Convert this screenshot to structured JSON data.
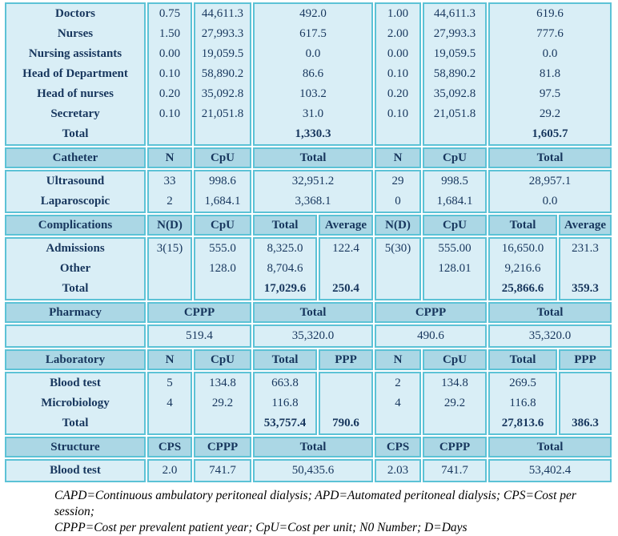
{
  "colors": {
    "border": "#5cc2d6",
    "header_bg": "#abd7e5",
    "body_bg": "#d9eef6",
    "text": "#17365d"
  },
  "table": {
    "grid_columns": [
      176,
      56,
      72,
      80,
      68,
      58,
      80,
      86,
      66
    ],
    "sections": [
      {
        "kind": "body",
        "name": "staff",
        "cells": [
          {
            "col": 1,
            "span": 1,
            "bold_all": true,
            "lines": [
              "Doctors",
              "Nurses",
              "Nursing assistants",
              "Head of Department",
              "Head of nurses",
              "Secretary",
              "Total"
            ]
          },
          {
            "col": 2,
            "span": 1,
            "lines": [
              "0.75",
              "1.50",
              "0.00",
              "0.10",
              "0.20",
              "0.10",
              ""
            ]
          },
          {
            "col": 3,
            "span": 1,
            "lines": [
              "44,611.3",
              "27,993.3",
              "19,059.5",
              "58,890.2",
              "35,092.8",
              "21,051.8",
              ""
            ]
          },
          {
            "col": 4,
            "span": 2,
            "bold_rows": [
              6
            ],
            "lines": [
              "492.0",
              "617.5",
              "0.0",
              "86.6",
              "103.2",
              "31.0",
              "1,330.3"
            ]
          },
          {
            "col": 6,
            "span": 1,
            "lines": [
              "1.00",
              "2.00",
              "0.00",
              "0.10",
              "0.20",
              "0.10",
              ""
            ]
          },
          {
            "col": 7,
            "span": 1,
            "lines": [
              "44,611.3",
              "27,993.3",
              "19,059.5",
              "58,890.2",
              "35,092.8",
              "21,051.8",
              ""
            ]
          },
          {
            "col": 8,
            "span": 2,
            "bold_rows": [
              6
            ],
            "lines": [
              "619.6",
              "777.6",
              "0.0",
              "81.8",
              "97.5",
              "29.2",
              "1,605.7"
            ]
          }
        ]
      },
      {
        "kind": "header",
        "name": "catheter-header",
        "cells": [
          {
            "col": 1,
            "span": 1,
            "lines": [
              "Catheter"
            ]
          },
          {
            "col": 2,
            "span": 1,
            "lines": [
              "N"
            ]
          },
          {
            "col": 3,
            "span": 1,
            "lines": [
              "CpU"
            ]
          },
          {
            "col": 4,
            "span": 2,
            "lines": [
              "Total"
            ]
          },
          {
            "col": 6,
            "span": 1,
            "lines": [
              "N"
            ]
          },
          {
            "col": 7,
            "span": 1,
            "lines": [
              "CpU"
            ]
          },
          {
            "col": 8,
            "span": 2,
            "lines": [
              "Total"
            ]
          }
        ]
      },
      {
        "kind": "body",
        "name": "catheter",
        "cells": [
          {
            "col": 1,
            "span": 1,
            "bold_all": true,
            "lines": [
              "Ultrasound",
              "Laparoscopic"
            ]
          },
          {
            "col": 2,
            "span": 1,
            "lines": [
              "33",
              "2"
            ]
          },
          {
            "col": 3,
            "span": 1,
            "lines": [
              "998.6",
              "1,684.1"
            ]
          },
          {
            "col": 4,
            "span": 2,
            "lines": [
              "32,951.2",
              "3,368.1"
            ]
          },
          {
            "col": 6,
            "span": 1,
            "lines": [
              "29",
              "0"
            ]
          },
          {
            "col": 7,
            "span": 1,
            "lines": [
              "998.5",
              "1,684.1"
            ]
          },
          {
            "col": 8,
            "span": 2,
            "lines": [
              "28,957.1",
              "0.0"
            ]
          }
        ]
      },
      {
        "kind": "header",
        "name": "complications-header",
        "cells": [
          {
            "col": 1,
            "span": 1,
            "lines": [
              "Complications"
            ]
          },
          {
            "col": 2,
            "span": 1,
            "lines": [
              "N(D)"
            ]
          },
          {
            "col": 3,
            "span": 1,
            "lines": [
              "CpU"
            ]
          },
          {
            "col": 4,
            "span": 1,
            "lines": [
              "Total"
            ]
          },
          {
            "col": 5,
            "span": 1,
            "lines": [
              "Average"
            ]
          },
          {
            "col": 6,
            "span": 1,
            "lines": [
              "N(D)"
            ]
          },
          {
            "col": 7,
            "span": 1,
            "lines": [
              "CpU"
            ]
          },
          {
            "col": 8,
            "span": 1,
            "lines": [
              "Total"
            ]
          },
          {
            "col": 9,
            "span": 1,
            "lines": [
              "Average"
            ]
          }
        ]
      },
      {
        "kind": "body",
        "name": "complications",
        "cells": [
          {
            "col": 1,
            "span": 1,
            "bold_all": true,
            "lines": [
              "Admissions",
              "Other",
              "Total"
            ]
          },
          {
            "col": 2,
            "span": 1,
            "lines": [
              "3(15)",
              "",
              ""
            ]
          },
          {
            "col": 3,
            "span": 1,
            "lines": [
              "555.0",
              "128.0",
              ""
            ]
          },
          {
            "col": 4,
            "span": 1,
            "bold_rows": [
              2
            ],
            "lines": [
              "8,325.0",
              "8,704.6",
              "17,029.6"
            ]
          },
          {
            "col": 5,
            "span": 1,
            "bold_rows": [
              2
            ],
            "lines": [
              "122.4",
              "",
              "250.4"
            ]
          },
          {
            "col": 6,
            "span": 1,
            "lines": [
              "5(30)",
              "",
              ""
            ]
          },
          {
            "col": 7,
            "span": 1,
            "lines": [
              "555.00",
              "128.01",
              ""
            ]
          },
          {
            "col": 8,
            "span": 1,
            "bold_rows": [
              2
            ],
            "lines": [
              "16,650.0",
              "9,216.6",
              "25,866.6"
            ]
          },
          {
            "col": 9,
            "span": 1,
            "bold_rows": [
              2
            ],
            "lines": [
              "231.3",
              "",
              "359.3"
            ]
          }
        ]
      },
      {
        "kind": "header",
        "name": "pharmacy-header",
        "cells": [
          {
            "col": 1,
            "span": 1,
            "lines": [
              "Pharmacy"
            ]
          },
          {
            "col": 2,
            "span": 2,
            "lines": [
              "CPPP"
            ]
          },
          {
            "col": 4,
            "span": 2,
            "lines": [
              "Total"
            ]
          },
          {
            "col": 6,
            "span": 2,
            "lines": [
              "CPPP"
            ]
          },
          {
            "col": 8,
            "span": 2,
            "lines": [
              "Total"
            ]
          }
        ]
      },
      {
        "kind": "body",
        "name": "pharmacy",
        "cells": [
          {
            "col": 1,
            "span": 1,
            "lines": [
              ""
            ]
          },
          {
            "col": 2,
            "span": 2,
            "lines": [
              "519.4"
            ]
          },
          {
            "col": 4,
            "span": 2,
            "lines": [
              "35,320.0"
            ]
          },
          {
            "col": 6,
            "span": 2,
            "lines": [
              "490.6"
            ]
          },
          {
            "col": 8,
            "span": 2,
            "lines": [
              "35,320.0"
            ]
          }
        ]
      },
      {
        "kind": "header",
        "name": "laboratory-header",
        "cells": [
          {
            "col": 1,
            "span": 1,
            "lines": [
              "Laboratory"
            ]
          },
          {
            "col": 2,
            "span": 1,
            "lines": [
              "N"
            ]
          },
          {
            "col": 3,
            "span": 1,
            "lines": [
              "CpU"
            ]
          },
          {
            "col": 4,
            "span": 1,
            "lines": [
              "Total"
            ]
          },
          {
            "col": 5,
            "span": 1,
            "lines": [
              "PPP"
            ]
          },
          {
            "col": 6,
            "span": 1,
            "lines": [
              "N"
            ]
          },
          {
            "col": 7,
            "span": 1,
            "lines": [
              "CpU"
            ]
          },
          {
            "col": 8,
            "span": 1,
            "lines": [
              "Total"
            ]
          },
          {
            "col": 9,
            "span": 1,
            "lines": [
              "PPP"
            ]
          }
        ]
      },
      {
        "kind": "body",
        "name": "laboratory",
        "cells": [
          {
            "col": 1,
            "span": 1,
            "bold_all": true,
            "lines": [
              "Blood test",
              "Microbiology",
              "Total"
            ]
          },
          {
            "col": 2,
            "span": 1,
            "lines": [
              "5",
              "4",
              ""
            ]
          },
          {
            "col": 3,
            "span": 1,
            "lines": [
              "134.8",
              "29.2",
              ""
            ]
          },
          {
            "col": 4,
            "span": 1,
            "bold_rows": [
              2
            ],
            "lines": [
              "663.8",
              "116.8",
              "53,757.4"
            ]
          },
          {
            "col": 5,
            "span": 1,
            "bold_rows": [
              2
            ],
            "lines": [
              "",
              "",
              "790.6"
            ]
          },
          {
            "col": 6,
            "span": 1,
            "lines": [
              "2",
              "4",
              ""
            ]
          },
          {
            "col": 7,
            "span": 1,
            "lines": [
              "134.8",
              "29.2",
              ""
            ]
          },
          {
            "col": 8,
            "span": 1,
            "bold_rows": [
              2
            ],
            "lines": [
              "269.5",
              "116.8",
              "27,813.6"
            ]
          },
          {
            "col": 9,
            "span": 1,
            "bold_rows": [
              2
            ],
            "lines": [
              "",
              "",
              "386.3"
            ]
          }
        ]
      },
      {
        "kind": "header",
        "name": "structure-header",
        "cells": [
          {
            "col": 1,
            "span": 1,
            "lines": [
              "Structure"
            ]
          },
          {
            "col": 2,
            "span": 1,
            "lines": [
              "CPS"
            ]
          },
          {
            "col": 3,
            "span": 1,
            "lines": [
              "CPPP"
            ]
          },
          {
            "col": 4,
            "span": 2,
            "lines": [
              "Total"
            ]
          },
          {
            "col": 6,
            "span": 1,
            "lines": [
              "CPS"
            ]
          },
          {
            "col": 7,
            "span": 1,
            "lines": [
              "CPPP"
            ]
          },
          {
            "col": 8,
            "span": 2,
            "lines": [
              "Total"
            ]
          }
        ]
      },
      {
        "kind": "body",
        "name": "structure",
        "cells": [
          {
            "col": 1,
            "span": 1,
            "bold_all": true,
            "lines": [
              "Blood test"
            ]
          },
          {
            "col": 2,
            "span": 1,
            "lines": [
              "2.0"
            ]
          },
          {
            "col": 3,
            "span": 1,
            "lines": [
              "741.7"
            ]
          },
          {
            "col": 4,
            "span": 2,
            "lines": [
              "50,435.6"
            ]
          },
          {
            "col": 6,
            "span": 1,
            "lines": [
              "2.03"
            ]
          },
          {
            "col": 7,
            "span": 1,
            "lines": [
              "741.7"
            ]
          },
          {
            "col": 8,
            "span": 2,
            "lines": [
              "53,402.4"
            ]
          }
        ]
      }
    ]
  },
  "footnote": {
    "line1": "CAPD=Continuous ambulatory peritoneal dialysis; APD=Automated peritoneal dialysis; CPS=Cost per session;",
    "line2": "CPPP=Cost per prevalent patient year; CpU=Cost per unit; N0 Number; D=Days"
  }
}
